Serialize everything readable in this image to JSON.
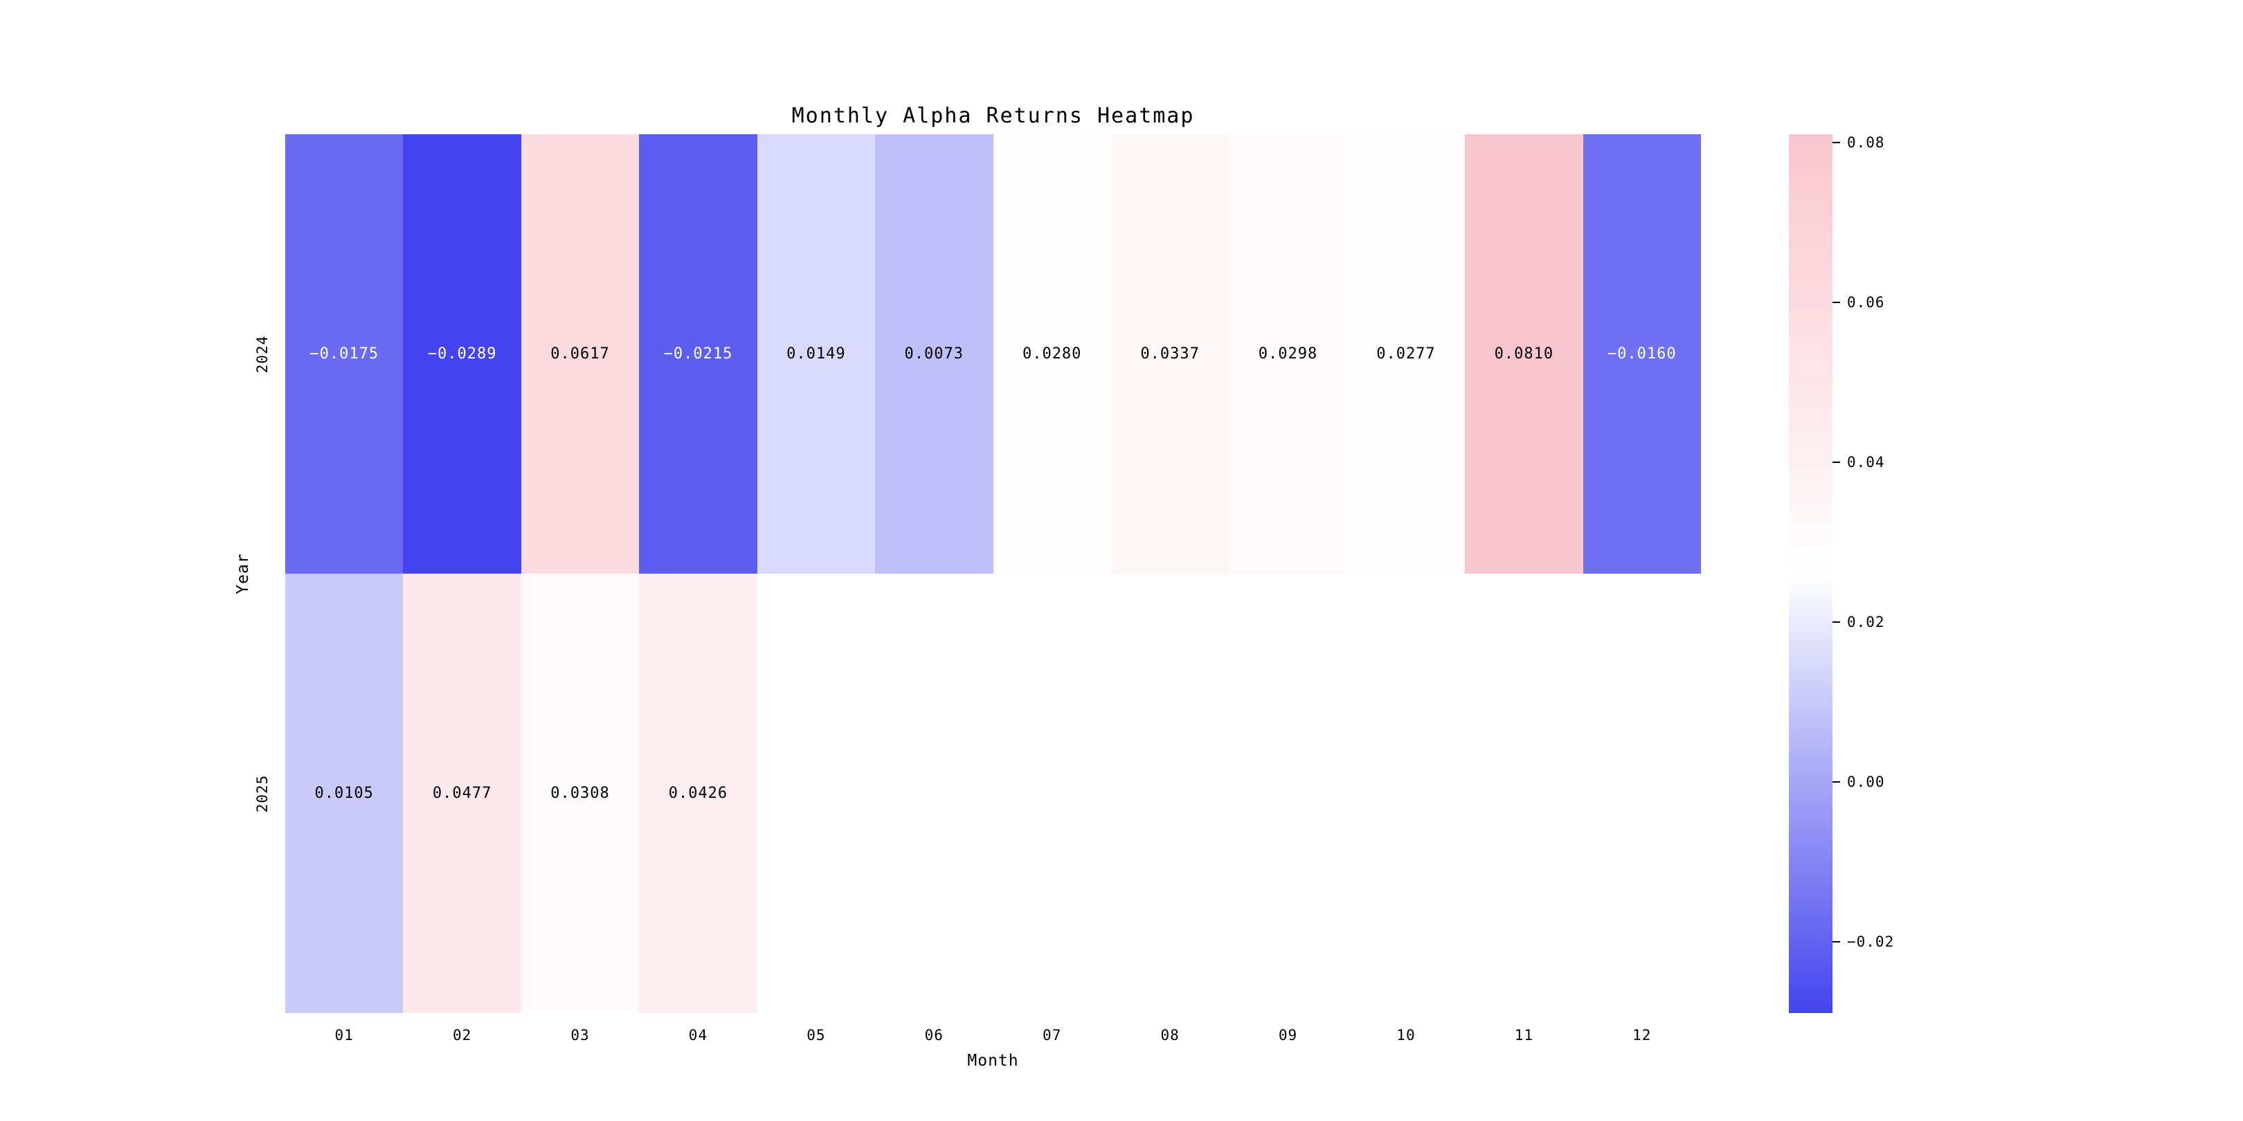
{
  "chart_data": {
    "type": "heatmap",
    "title": "Monthly Alpha Returns Heatmap",
    "xlabel": "Month",
    "ylabel": "Year",
    "x_categories": [
      "01",
      "02",
      "03",
      "04",
      "05",
      "06",
      "07",
      "08",
      "09",
      "10",
      "11",
      "12"
    ],
    "y_categories": [
      "2024",
      "2025"
    ],
    "rows": [
      [
        -0.0175,
        -0.0289,
        0.0617,
        -0.0215,
        0.0149,
        0.0073,
        0.028,
        0.0337,
        0.0298,
        0.0277,
        0.081,
        -0.016
      ],
      [
        0.0105,
        0.0477,
        0.0308,
        0.0426,
        null,
        null,
        null,
        null,
        null,
        null,
        null,
        null
      ]
    ],
    "value_format_decimals": 4,
    "vmin": -0.0289,
    "vmax": 0.081,
    "colorbar_ticks": [
      0.08,
      0.06,
      0.04,
      0.02,
      0.0,
      -0.02
    ],
    "colorbar_tick_decimals": 2,
    "legend_position": "right",
    "grid": false,
    "colormap": {
      "low": "#4444ee",
      "mid": "#ffffff",
      "high": "#f9c6cf"
    },
    "annotation_text_dark": "#000000",
    "annotation_text_light": "#ffffff",
    "background": "#ffffff"
  }
}
